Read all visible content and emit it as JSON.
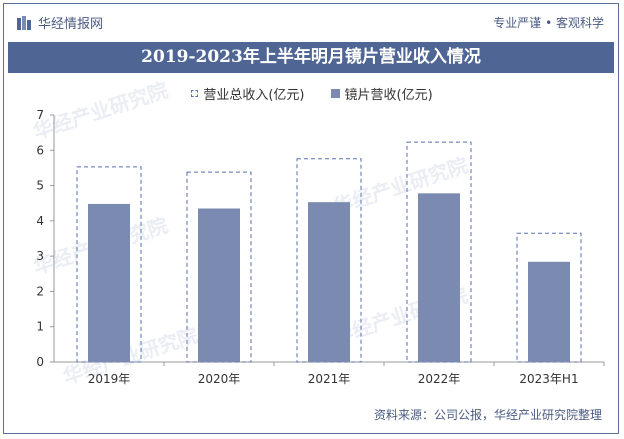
{
  "header": {
    "brand": "华经情报网",
    "slogan": "专业严谨 • 客观科学"
  },
  "watermark": "华经产业研究院",
  "footer": {
    "source": "资料来源：公司公报，华经产业研究院整理"
  },
  "colors": {
    "title_bg": "#4f6594",
    "bar": "#7b8ab0",
    "dashed": "#5a6fb0",
    "axis": "#999999"
  },
  "chart_data": {
    "type": "bar",
    "title": "2019-2023年上半年明月镜片营业收入情况",
    "categories": [
      "2019年",
      "2020年",
      "2021年",
      "2022年",
      "2023年H1"
    ],
    "series": [
      {
        "name": "营业总收入(亿元)",
        "style": "dashed-outline",
        "values": [
          5.53,
          5.38,
          5.76,
          6.23,
          3.65
        ]
      },
      {
        "name": "镜片营收(亿元)",
        "style": "solid",
        "values": [
          4.48,
          4.35,
          4.53,
          4.78,
          2.84
        ]
      }
    ],
    "ylim": [
      0,
      7
    ],
    "yticks": [
      "0",
      "1",
      "2",
      "3",
      "4",
      "5",
      "6",
      "7"
    ],
    "grid": false,
    "legend": "top-center"
  }
}
